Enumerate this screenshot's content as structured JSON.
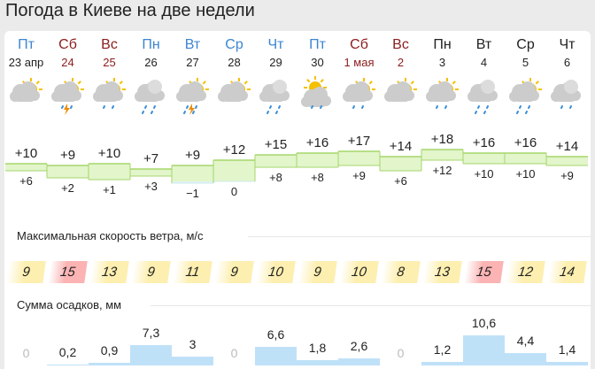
{
  "title": "Погода в Киеве на две недели",
  "wind_label": "Максимальная скорость ветра, м/с",
  "precip_label": "Сумма осадков, мм",
  "colors": {
    "weekday_past": "#3b86d0",
    "weekday": "#222222",
    "weekend": "#8b1c1c",
    "band_fill": "#e2f5cb",
    "band_line": "#a6d66b",
    "band_cold": "#e3f3f5",
    "wind_normal": "#fdefb0",
    "wind_high": "#fbb3b3",
    "precip": "#bfe1f8"
  },
  "days": [
    {
      "dow": "Пт",
      "date": "23 апр",
      "kind": "weekday_past",
      "icon": {
        "sun": true,
        "cloud": "partly",
        "rain": 0,
        "thunder": false
      },
      "tmax": "+10",
      "tmin": "+6",
      "max": 10,
      "min": 6,
      "wind": "9",
      "wind_high": false,
      "precip": "0",
      "precip_v": 0
    },
    {
      "dow": "Сб",
      "date": "24",
      "kind": "weekend",
      "icon": {
        "sun": true,
        "cloud": "partly",
        "rain": 1,
        "thunder": true
      },
      "tmax": "+9",
      "tmin": "+2",
      "max": 9,
      "min": 2,
      "wind": "15",
      "wind_high": true,
      "precip": "0,2",
      "precip_v": 0.2
    },
    {
      "dow": "Вс",
      "date": "25",
      "kind": "weekend",
      "icon": {
        "sun": true,
        "cloud": "partly",
        "rain": 1,
        "thunder": false
      },
      "tmax": "+10",
      "tmin": "+1",
      "max": 10,
      "min": 1,
      "wind": "13",
      "wind_high": false,
      "precip": "0,9",
      "precip_v": 0.9
    },
    {
      "dow": "Пн",
      "date": "26",
      "kind": "weekday_past",
      "icon": {
        "sun": false,
        "cloud": "overcast",
        "rain": 2,
        "thunder": false
      },
      "tmax": "+7",
      "tmin": "+3",
      "max": 7,
      "min": 3,
      "wind": "9",
      "wind_high": false,
      "precip": "7,3",
      "precip_v": 7.3
    },
    {
      "dow": "Вт",
      "date": "27",
      "kind": "weekday_past",
      "icon": {
        "sun": true,
        "cloud": "partly",
        "rain": 2,
        "thunder": true
      },
      "tmax": "+9",
      "tmin": "−1",
      "max": 9,
      "min": -1,
      "wind": "11",
      "wind_high": false,
      "precip": "3",
      "precip_v": 3
    },
    {
      "dow": "Ср",
      "date": "28",
      "kind": "weekday_past",
      "icon": {
        "sun": true,
        "cloud": "partly",
        "rain": 0,
        "thunder": false
      },
      "tmax": "+12",
      "tmin": "0",
      "max": 12,
      "min": 0,
      "wind": "9",
      "wind_high": false,
      "precip": "0",
      "precip_v": 0
    },
    {
      "dow": "Чт",
      "date": "29",
      "kind": "weekday_past",
      "icon": {
        "sun": false,
        "cloud": "overcast",
        "rain": 2,
        "thunder": false
      },
      "tmax": "+15",
      "tmin": "+8",
      "max": 15,
      "min": 8,
      "wind": "10",
      "wind_high": false,
      "precip": "6,6",
      "precip_v": 6.6
    },
    {
      "dow": "Пт",
      "date": "30",
      "kind": "weekday_past",
      "icon": {
        "sun": true,
        "cloud": "small",
        "rain": 1,
        "thunder": false
      },
      "tmax": "+16",
      "tmin": "+8",
      "max": 16,
      "min": 8,
      "wind": "9",
      "wind_high": false,
      "precip": "1,8",
      "precip_v": 1.8
    },
    {
      "dow": "Сб",
      "date": "1 мая",
      "kind": "weekend",
      "icon": {
        "sun": true,
        "cloud": "partly",
        "rain": 1,
        "thunder": false
      },
      "tmax": "+17",
      "tmin": "+9",
      "max": 17,
      "min": 9,
      "wind": "10",
      "wind_high": false,
      "precip": "2,6",
      "precip_v": 2.6
    },
    {
      "dow": "Вс",
      "date": "2",
      "kind": "weekend",
      "icon": {
        "sun": true,
        "cloud": "partly",
        "rain": 0,
        "thunder": false
      },
      "tmax": "+14",
      "tmin": "+6",
      "max": 14,
      "min": 6,
      "wind": "8",
      "wind_high": false,
      "precip": "0",
      "precip_v": 0
    },
    {
      "dow": "Пн",
      "date": "3",
      "kind": "weekday",
      "icon": {
        "sun": true,
        "cloud": "partly",
        "rain": 1,
        "thunder": false
      },
      "tmax": "+18",
      "tmin": "+12",
      "max": 18,
      "min": 12,
      "wind": "13",
      "wind_high": false,
      "precip": "1,2",
      "precip_v": 1.2
    },
    {
      "dow": "Вт",
      "date": "4",
      "kind": "weekday",
      "icon": {
        "sun": false,
        "cloud": "overcast",
        "rain": 2,
        "thunder": false
      },
      "tmax": "+16",
      "tmin": "+10",
      "max": 16,
      "min": 10,
      "wind": "15",
      "wind_high": true,
      "precip": "10,6",
      "precip_v": 10.6
    },
    {
      "dow": "Ср",
      "date": "5",
      "kind": "weekday",
      "icon": {
        "sun": true,
        "cloud": "partly",
        "rain": 2,
        "thunder": false
      },
      "tmax": "+16",
      "tmin": "+10",
      "max": 16,
      "min": 10,
      "wind": "12",
      "wind_high": false,
      "precip": "4,4",
      "precip_v": 4.4
    },
    {
      "dow": "Чт",
      "date": "6",
      "kind": "weekday",
      "icon": {
        "sun": false,
        "cloud": "overcast",
        "rain": 1,
        "thunder": false
      },
      "tmax": "+14",
      "tmin": "+9",
      "max": 14,
      "min": 9,
      "wind": "14",
      "wind_high": false,
      "precip": "1,4",
      "precip_v": 1.4
    }
  ]
}
